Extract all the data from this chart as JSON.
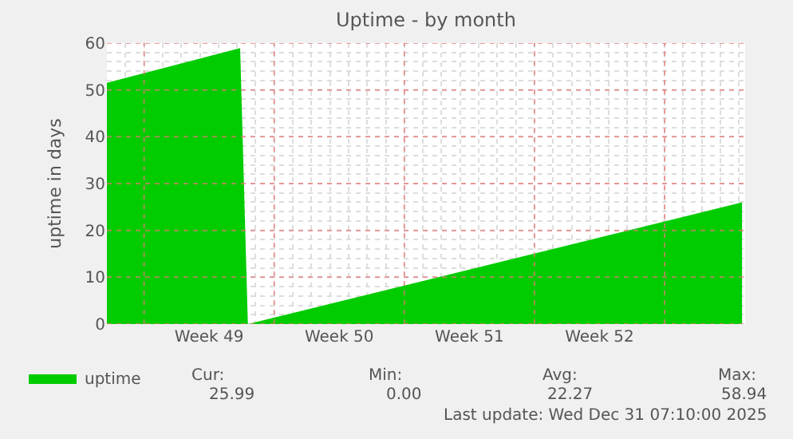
{
  "chart_data": {
    "type": "area",
    "title": "Uptime - by month",
    "ylabel": "uptime in days",
    "x": [
      "2025-11-27T03:00",
      "2025-12-04T07:00",
      "2025-12-04T17:00",
      "2025-12-31T07:00"
    ],
    "series": [
      {
        "name": "uptime",
        "color": "#00cc00",
        "values": [
          51.5,
          58.94,
          0,
          25.99
        ]
      }
    ],
    "xlim": [
      "2025-11-27T03:00",
      "2025-12-31T11:00"
    ],
    "xticks": [
      {
        "value": "2025-11-29T03:00",
        "label": null
      },
      {
        "value": "2025-12-02T15:00",
        "label": "Week 49"
      },
      {
        "value": "2025-12-06T03:00",
        "label": null
      },
      {
        "value": "2025-12-09T15:00",
        "label": "Week 50"
      },
      {
        "value": "2025-12-13T03:00",
        "label": null
      },
      {
        "value": "2025-12-16T15:00",
        "label": "Week 51"
      },
      {
        "value": "2025-12-20T03:00",
        "label": null
      },
      {
        "value": "2025-12-23T15:00",
        "label": "Week 52"
      },
      {
        "value": "2025-12-27T03:00",
        "label": null
      }
    ],
    "ylim": [
      0,
      60
    ],
    "yticks": [
      0,
      {
        "value": 2,
        "label": null
      },
      {
        "value": 4,
        "label": null
      },
      {
        "value": 6,
        "label": null
      },
      {
        "value": 8,
        "label": null
      },
      10,
      {
        "value": 12,
        "label": null
      },
      {
        "value": 14,
        "label": null
      },
      {
        "value": 16,
        "label": null
      },
      {
        "value": 18,
        "label": null
      },
      20,
      {
        "value": 22,
        "label": null
      },
      {
        "value": 24,
        "label": null
      },
      {
        "value": 26,
        "label": null
      },
      {
        "value": 28,
        "label": null
      },
      30,
      {
        "value": 32,
        "label": null
      },
      {
        "value": 34,
        "label": null
      },
      {
        "value": 36,
        "label": null
      },
      {
        "value": 38,
        "label": null
      },
      40,
      {
        "value": 42,
        "label": null
      },
      {
        "value": 44,
        "label": null
      },
      {
        "value": 46,
        "label": null
      },
      {
        "value": 48,
        "label": null
      },
      50,
      {
        "value": 52,
        "label": null
      },
      {
        "value": 54,
        "label": null
      },
      {
        "value": 56,
        "label": null
      },
      {
        "value": 58,
        "label": null
      },
      60
    ],
    "grid": true,
    "legend": "bottom left",
    "annotations": [
      "Cur:",
      "Min:",
      "Avg:",
      "Max:",
      "25.99",
      "0.00",
      "22.27",
      "58.94",
      "Last update: Wed Dec 31 07:10:00 2025"
    ]
  }
}
